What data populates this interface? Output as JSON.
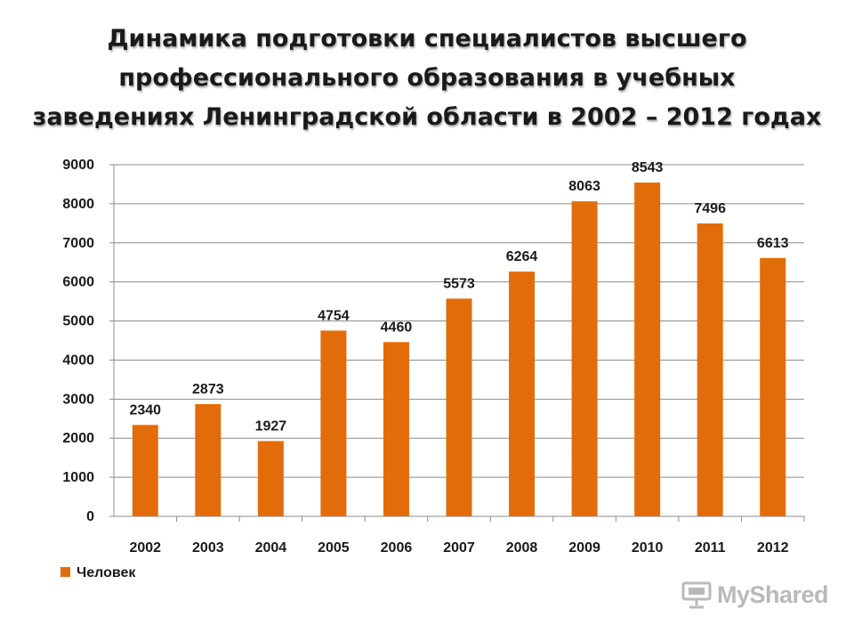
{
  "title_lines": [
    "Динамика подготовки специалистов высшего",
    "профессионального образования в учебных",
    "заведениях Ленинградской области в 2002 – 2012 годах"
  ],
  "watermark": "MyShared",
  "colors": {
    "bar": "#E36C0A",
    "grid": "#8c8c8c",
    "axis": "#8c8c8c",
    "text": "#1a1a1a"
  },
  "chart_data": {
    "type": "bar",
    "title": "Динамика подготовки специалистов высшего профессионального образования в учебных заведениях Ленинградской области в 2002 – 2012 годах",
    "categories": [
      "2002",
      "2003",
      "2004",
      "2005",
      "2006",
      "2007",
      "2008",
      "2009",
      "2010",
      "2011",
      "2012"
    ],
    "series": [
      {
        "name": "Человек",
        "values": [
          2340,
          2873,
          1927,
          4754,
          4460,
          5573,
          6264,
          8063,
          8543,
          7496,
          6613
        ]
      }
    ],
    "ylim": [
      0,
      9000
    ],
    "yticks": [
      0,
      1000,
      2000,
      3000,
      4000,
      5000,
      6000,
      7000,
      8000,
      9000
    ],
    "xlabel": "",
    "ylabel": "",
    "grid": true,
    "data_labels": true,
    "legend": "bottom-left"
  }
}
